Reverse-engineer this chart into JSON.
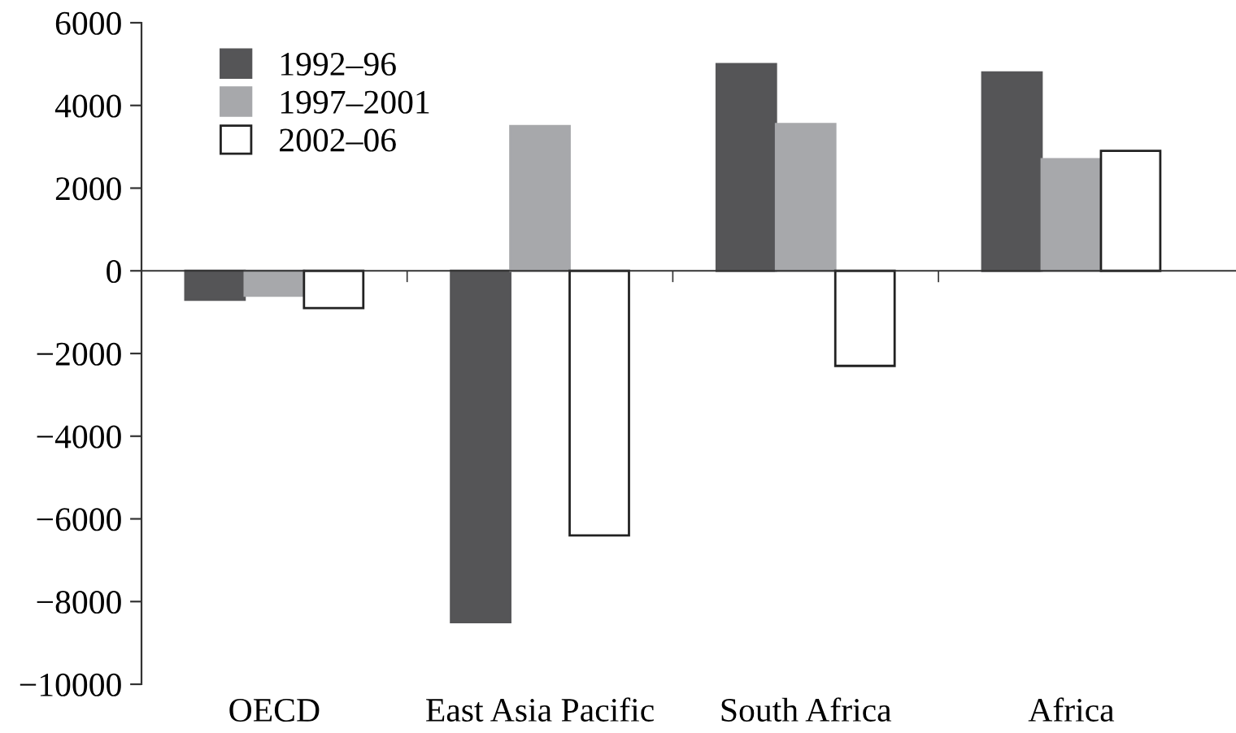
{
  "chart_data": {
    "type": "bar",
    "categories": [
      "OECD",
      "East Asia Pacific",
      "South Africa",
      "Africa"
    ],
    "series": [
      {
        "name": "1992–96",
        "color": "#555557",
        "values": [
          -700,
          -8500,
          5000,
          4800
        ]
      },
      {
        "name": "1997–2001",
        "color": "#a7a8ab",
        "values": [
          -600,
          3500,
          3550,
          2700
        ]
      },
      {
        "name": "2002–06",
        "color": "#ffffff",
        "values": [
          -900,
          -6400,
          -2300,
          2900
        ]
      }
    ],
    "ylim": [
      -10000,
      6000
    ],
    "yticks": [
      -10000,
      -8000,
      -6000,
      -4000,
      -2000,
      0,
      2000,
      4000,
      6000
    ],
    "legend": "top left"
  }
}
